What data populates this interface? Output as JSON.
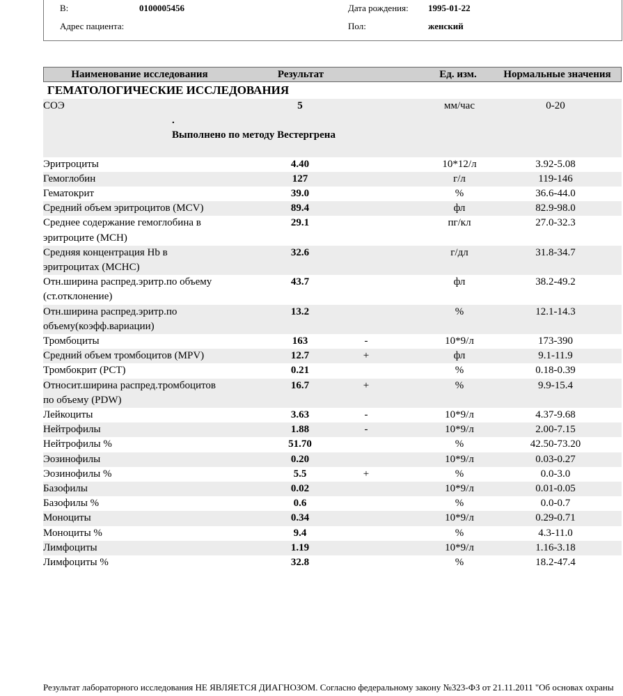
{
  "header": {
    "id_label": "В:",
    "id": "0100005456",
    "birth_label": "Дата рождения:",
    "birth": "1995-01-22",
    "address_label": "Адрес пациента:",
    "sex_label": "Пол:",
    "sex": "женский"
  },
  "table": {
    "columns": [
      "Наименование исследования",
      "Результат",
      "Ед. изм.",
      "Нормальные значения"
    ],
    "section": "ГЕМАТОЛОГИЧЕСКИЕ ИССЛЕДОВАНИЯ",
    "rows": [
      {
        "name": [
          "СОЭ"
        ],
        "result": "5",
        "unit": "мм/час",
        "range": "0-20",
        "note": [
          ".",
          "Выполнено по методу Вестергрена"
        ]
      },
      {
        "name": [
          "Эритроциты"
        ],
        "result": "4.40",
        "unit": "10*12/л",
        "range": "3.92-5.08"
      },
      {
        "name": [
          "Гемоглобин"
        ],
        "result": "127",
        "unit": "г/л",
        "range": "119-146"
      },
      {
        "name": [
          "Гематокрит"
        ],
        "result": "39.0",
        "unit": "%",
        "range": "36.6-44.0"
      },
      {
        "name": [
          "Средний объем эритроцитов (MCV)"
        ],
        "result": "89.4",
        "unit": "фл",
        "range": "82.9-98.0"
      },
      {
        "name": [
          "Среднее содержание гемоглобина в",
          "эритроците (MCH)"
        ],
        "result": "29.1",
        "unit": "пг/кл",
        "range": "27.0-32.3"
      },
      {
        "name": [
          "Средняя концентрация Hb в",
          "эритроцитах (MCHC)"
        ],
        "result": "32.6",
        "unit": "г/дл",
        "range": "31.8-34.7"
      },
      {
        "name": [
          "Отн.ширина распред.эритр.по объему",
          "(ст.отклонение)"
        ],
        "result": "43.7",
        "unit": "фл",
        "range": "38.2-49.2"
      },
      {
        "name": [
          "Отн.ширина распред.эритр.по",
          "объему(коэфф.вариации)"
        ],
        "result": "13.2",
        "unit": "%",
        "range": "12.1-14.3"
      },
      {
        "name": [
          "Тромбоциты"
        ],
        "result": "163",
        "flag": "-",
        "unit": "10*9/л",
        "range": "173-390"
      },
      {
        "name": [
          "Средний объем тромбоцитов (MPV)"
        ],
        "result": "12.7",
        "flag": "+",
        "unit": "фл",
        "range": "9.1-11.9"
      },
      {
        "name": [
          "Тромбокрит (PCT)"
        ],
        "result": "0.21",
        "unit": "%",
        "range": "0.18-0.39"
      },
      {
        "name": [
          "Относит.ширина распред.тромбоцитов",
          "по объему (PDW)"
        ],
        "result": "16.7",
        "flag": "+",
        "unit": "%",
        "range": "9.9-15.4"
      },
      {
        "name": [
          "Лейкоциты"
        ],
        "result": "3.63",
        "flag": "-",
        "unit": "10*9/л",
        "range": "4.37-9.68"
      },
      {
        "name": [
          "Нейтрофилы"
        ],
        "result": "1.88",
        "flag": "-",
        "unit": "10*9/л",
        "range": "2.00-7.15"
      },
      {
        "name": [
          "Нейтрофилы %"
        ],
        "result": "51.70",
        "unit": "%",
        "range": "42.50-73.20"
      },
      {
        "name": [
          "Эозинофилы"
        ],
        "result": "0.20",
        "unit": "10*9/л",
        "range": "0.03-0.27"
      },
      {
        "name": [
          "Эозинофилы %"
        ],
        "result": "5.5",
        "flag": "+",
        "unit": "%",
        "range": "0.0-3.0"
      },
      {
        "name": [
          "Базофилы"
        ],
        "result": "0.02",
        "unit": "10*9/л",
        "range": "0.01-0.05"
      },
      {
        "name": [
          "Базофилы %"
        ],
        "result": "0.6",
        "unit": "%",
        "range": "0.0-0.7"
      },
      {
        "name": [
          "Моноциты"
        ],
        "result": "0.34",
        "unit": "10*9/л",
        "range": "0.29-0.71"
      },
      {
        "name": [
          "Моноциты %"
        ],
        "result": "9.4",
        "unit": "%",
        "range": "4.3-11.0"
      },
      {
        "name": [
          "Лимфоциты"
        ],
        "result": "1.19",
        "unit": "10*9/л",
        "range": "1.16-3.18"
      },
      {
        "name": [
          "Лимфоциты %"
        ],
        "result": "32.8",
        "unit": "%",
        "range": "18.2-47.4"
      }
    ]
  },
  "footer": "Результат лабораторного исследования НЕ ЯВЛЯЕТСЯ ДИАГНОЗОМ. Согласно федеральному закону №323-ФЗ от 21.11.2011 \"Об основах охраны"
}
